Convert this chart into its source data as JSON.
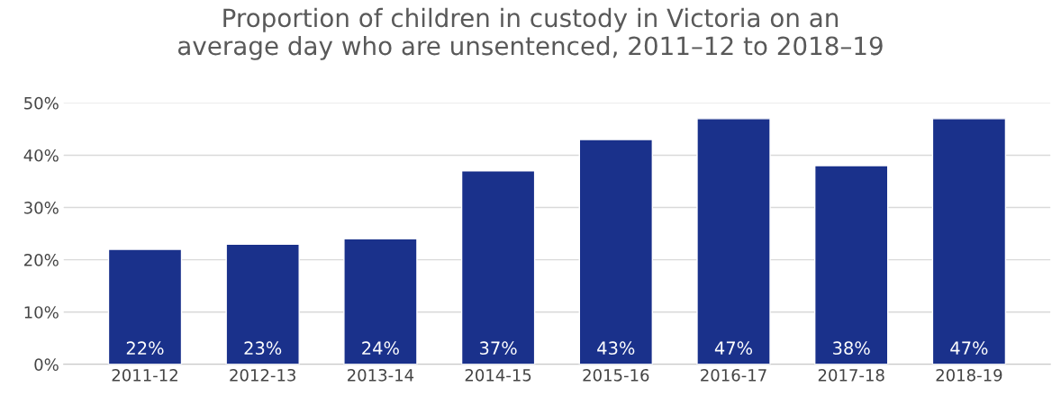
{
  "chart_data": {
    "type": "bar",
    "title": "Proportion of children in custody in Victoria on an\naverage day who are unsentenced, 2011–12 to 2018–19",
    "categories": [
      "2011-12",
      "2012-13",
      "2013-14",
      "2014-15",
      "2015-16",
      "2016-17",
      "2017-18",
      "2018-19"
    ],
    "values": [
      22,
      23,
      24,
      37,
      43,
      47,
      38,
      47
    ],
    "value_labels": [
      "22%",
      "23%",
      "24%",
      "37%",
      "43%",
      "47%",
      "38%",
      "47%"
    ],
    "color": "#1a318b",
    "ylim": [
      0,
      50
    ],
    "yticks": [
      {
        "value": 0,
        "label": "0%"
      },
      {
        "value": 10,
        "label": "10%"
      },
      {
        "value": 20,
        "label": "20%"
      },
      {
        "value": 30,
        "label": "30%"
      },
      {
        "value": 40,
        "label": "40%"
      },
      {
        "value": 50,
        "label": "50%"
      }
    ],
    "grid": "y",
    "legend": false
  }
}
